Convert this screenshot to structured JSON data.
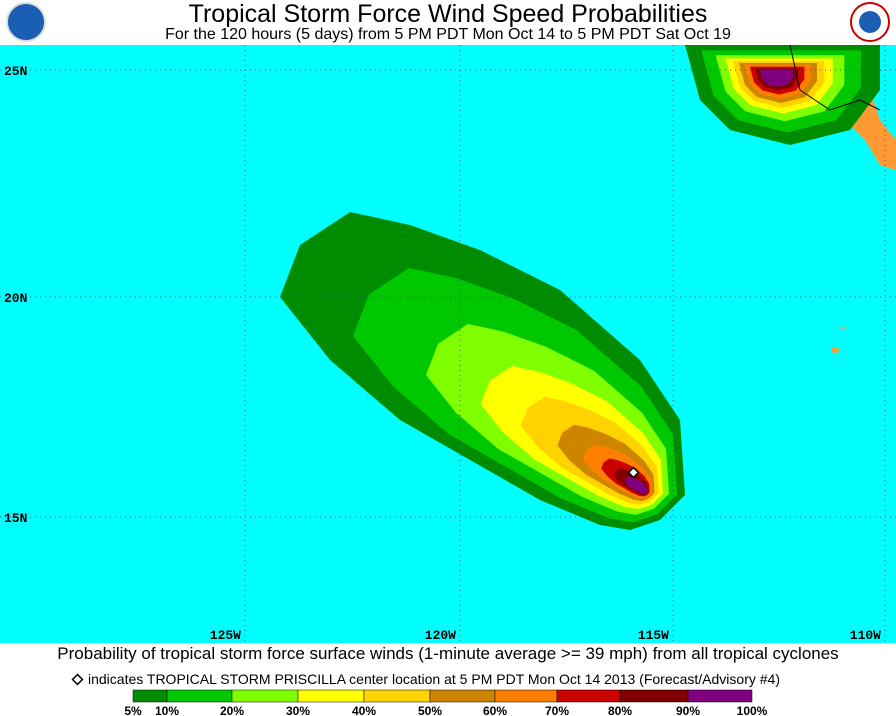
{
  "header": {
    "title": "Tropical Storm Force Wind Speed Probabilities",
    "subtitle": "For the 120 hours (5 days) from 5 PM PDT Mon Oct 14 to 5 PM PDT Sat Oct 19"
  },
  "map": {
    "lat_labels": [
      "25N",
      "20N",
      "15N"
    ],
    "lon_labels": [
      "125W",
      "120W",
      "115W",
      "110W"
    ]
  },
  "footer": {
    "caption": "Probability of tropical storm force surface winds (1-minute average >= 39 mph) from all tropical cyclones",
    "note": "indicates TROPICAL STORM PRISCILLA center location at 5 PM PDT Mon Oct 14 2013 (Forecast/Advisory #4)"
  },
  "legend": {
    "labels": [
      "5%",
      "10%",
      "20%",
      "30%",
      "40%",
      "50%",
      "60%",
      "70%",
      "80%",
      "90%",
      "100%"
    ],
    "colors": [
      "#008c00",
      "#00c800",
      "#80ff00",
      "#ffff00",
      "#ffd200",
      "#cd8500",
      "#ff8000",
      "#cd0000",
      "#800000",
      "#800080"
    ]
  }
}
